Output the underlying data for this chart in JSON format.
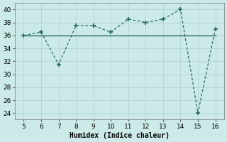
{
  "x": [
    5,
    6,
    7,
    8,
    9,
    10,
    11,
    12,
    13,
    14,
    15,
    16
  ],
  "y_dashed": [
    36,
    36.5,
    31.5,
    37.5,
    37.5,
    36.5,
    38.5,
    38,
    38.5,
    40,
    24,
    37
  ],
  "y_solid": [
    36,
    36,
    36,
    36,
    36,
    36,
    36,
    36,
    36,
    36,
    36,
    36
  ],
  "line_color": "#2a6b60",
  "marker": "+",
  "marker_size": 4,
  "marker_linewidth": 1.2,
  "xlabel": "Humidex (Indice chaleur)",
  "xlim": [
    4.5,
    16.5
  ],
  "ylim": [
    23,
    41
  ],
  "yticks": [
    24,
    26,
    28,
    30,
    32,
    34,
    36,
    38,
    40
  ],
  "xticks": [
    5,
    6,
    7,
    8,
    9,
    10,
    11,
    12,
    13,
    14,
    15,
    16
  ],
  "bg_color": "#cceae7",
  "grid_color": "#b8d8d5",
  "tick_fontsize": 6.5,
  "xlabel_fontsize": 7
}
